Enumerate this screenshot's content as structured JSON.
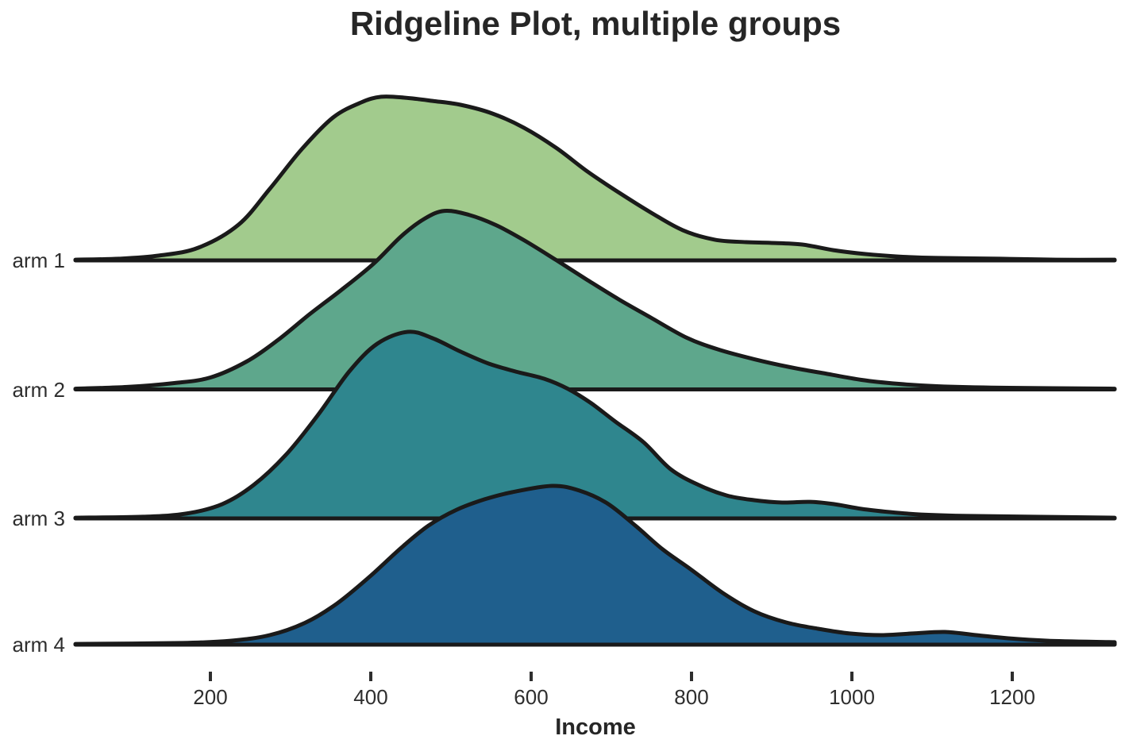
{
  "title": "Ridgeline Plot, multiple groups",
  "x_axis": {
    "title": "Income",
    "ticks": [
      200,
      400,
      600,
      800,
      1000,
      1200
    ],
    "tick_labels": [
      "200",
      "400",
      "600",
      "800",
      "1000",
      "1200"
    ]
  },
  "y_axis": {
    "labels": [
      "arm 1",
      "arm 2",
      "arm 3",
      "arm 4"
    ]
  },
  "colors": {
    "outline": "#1a1a1a",
    "text": "#2e2e2e",
    "background": "#ffffff",
    "arm1_fill": "#a2cb8d",
    "arm2_fill": "#5ea78c",
    "arm3_fill": "#2f868e",
    "arm4_fill": "#1f5f8d"
  },
  "chart_data": {
    "type": "area",
    "variant": "ridgeline",
    "title": "Ridgeline Plot, multiple groups",
    "xlabel": "Income",
    "ylabel": "",
    "xlim": [
      30,
      1330
    ],
    "x_ticks": [
      200,
      400,
      600,
      800,
      1000,
      1200
    ],
    "grid": false,
    "legend": false,
    "height_unit": "density relative to global maximum (arm 3 peak = 1.0)",
    "row_order_top_to_bottom": [
      "arm 1",
      "arm 2",
      "arm 3",
      "arm 4"
    ],
    "series": [
      {
        "name": "arm 1",
        "fill": "#a2cb8d",
        "peak_x": 413,
        "peak_height": 0.877,
        "points": [
          [
            32,
            0.004
          ],
          [
            86,
            0.009
          ],
          [
            136,
            0.026
          ],
          [
            185,
            0.068
          ],
          [
            235,
            0.191
          ],
          [
            274,
            0.383
          ],
          [
            314,
            0.596
          ],
          [
            353,
            0.766
          ],
          [
            388,
            0.847
          ],
          [
            413,
            0.877
          ],
          [
            443,
            0.872
          ],
          [
            477,
            0.855
          ],
          [
            512,
            0.834
          ],
          [
            552,
            0.787
          ],
          [
            591,
            0.711
          ],
          [
            631,
            0.604
          ],
          [
            670,
            0.477
          ],
          [
            710,
            0.362
          ],
          [
            750,
            0.255
          ],
          [
            789,
            0.162
          ],
          [
            829,
            0.111
          ],
          [
            868,
            0.098
          ],
          [
            898,
            0.094
          ],
          [
            938,
            0.085
          ],
          [
            977,
            0.055
          ],
          [
            1017,
            0.034
          ],
          [
            1057,
            0.021
          ],
          [
            1106,
            0.013
          ],
          [
            1185,
            0.009
          ],
          [
            1255,
            0.004
          ],
          [
            1328,
            0.004
          ]
        ]
      },
      {
        "name": "arm 2",
        "fill": "#5ea78c",
        "peak_x": 492,
        "peak_height": 0.957,
        "points": [
          [
            32,
            0.004
          ],
          [
            96,
            0.013
          ],
          [
            155,
            0.034
          ],
          [
            200,
            0.064
          ],
          [
            245,
            0.149
          ],
          [
            284,
            0.264
          ],
          [
            324,
            0.404
          ],
          [
            363,
            0.532
          ],
          [
            403,
            0.672
          ],
          [
            438,
            0.821
          ],
          [
            467,
            0.915
          ],
          [
            492,
            0.957
          ],
          [
            522,
            0.936
          ],
          [
            556,
            0.881
          ],
          [
            591,
            0.8
          ],
          [
            631,
            0.694
          ],
          [
            670,
            0.587
          ],
          [
            710,
            0.481
          ],
          [
            750,
            0.383
          ],
          [
            794,
            0.277
          ],
          [
            834,
            0.213
          ],
          [
            878,
            0.162
          ],
          [
            923,
            0.119
          ],
          [
            967,
            0.085
          ],
          [
            1012,
            0.051
          ],
          [
            1057,
            0.03
          ],
          [
            1106,
            0.017
          ],
          [
            1185,
            0.009
          ],
          [
            1328,
            0.004
          ]
        ]
      },
      {
        "name": "arm 3",
        "fill": "#2f868e",
        "peak_x": 446,
        "peak_height": 1.0,
        "points": [
          [
            32,
            0.004
          ],
          [
            116,
            0.009
          ],
          [
            170,
            0.026
          ],
          [
            215,
            0.077
          ],
          [
            254,
            0.179
          ],
          [
            294,
            0.34
          ],
          [
            334,
            0.553
          ],
          [
            373,
            0.787
          ],
          [
            408,
            0.936
          ],
          [
            446,
            1.0
          ],
          [
            477,
            0.966
          ],
          [
            512,
            0.894
          ],
          [
            547,
            0.83
          ],
          [
            581,
            0.787
          ],
          [
            616,
            0.749
          ],
          [
            646,
            0.694
          ],
          [
            675,
            0.617
          ],
          [
            705,
            0.519
          ],
          [
            740,
            0.409
          ],
          [
            774,
            0.264
          ],
          [
            809,
            0.179
          ],
          [
            844,
            0.123
          ],
          [
            878,
            0.098
          ],
          [
            913,
            0.085
          ],
          [
            948,
            0.089
          ],
          [
            977,
            0.077
          ],
          [
            1012,
            0.051
          ],
          [
            1047,
            0.034
          ],
          [
            1086,
            0.021
          ],
          [
            1146,
            0.013
          ],
          [
            1225,
            0.009
          ],
          [
            1328,
            0.004
          ]
        ]
      },
      {
        "name": "arm 4",
        "fill": "#1f5f8d",
        "peak_x": 626,
        "peak_height": 0.851,
        "points": [
          [
            32,
            0.004
          ],
          [
            165,
            0.009
          ],
          [
            225,
            0.021
          ],
          [
            274,
            0.051
          ],
          [
            319,
            0.119
          ],
          [
            358,
            0.221
          ],
          [
            398,
            0.362
          ],
          [
            438,
            0.519
          ],
          [
            472,
            0.638
          ],
          [
            507,
            0.723
          ],
          [
            542,
            0.779
          ],
          [
            576,
            0.817
          ],
          [
            626,
            0.851
          ],
          [
            660,
            0.826
          ],
          [
            695,
            0.757
          ],
          [
            730,
            0.638
          ],
          [
            764,
            0.511
          ],
          [
            799,
            0.404
          ],
          [
            839,
            0.277
          ],
          [
            878,
            0.179
          ],
          [
            918,
            0.119
          ],
          [
            958,
            0.085
          ],
          [
            997,
            0.06
          ],
          [
            1037,
            0.051
          ],
          [
            1076,
            0.06
          ],
          [
            1116,
            0.068
          ],
          [
            1155,
            0.051
          ],
          [
            1195,
            0.034
          ],
          [
            1245,
            0.021
          ],
          [
            1328,
            0.013
          ]
        ]
      }
    ]
  }
}
